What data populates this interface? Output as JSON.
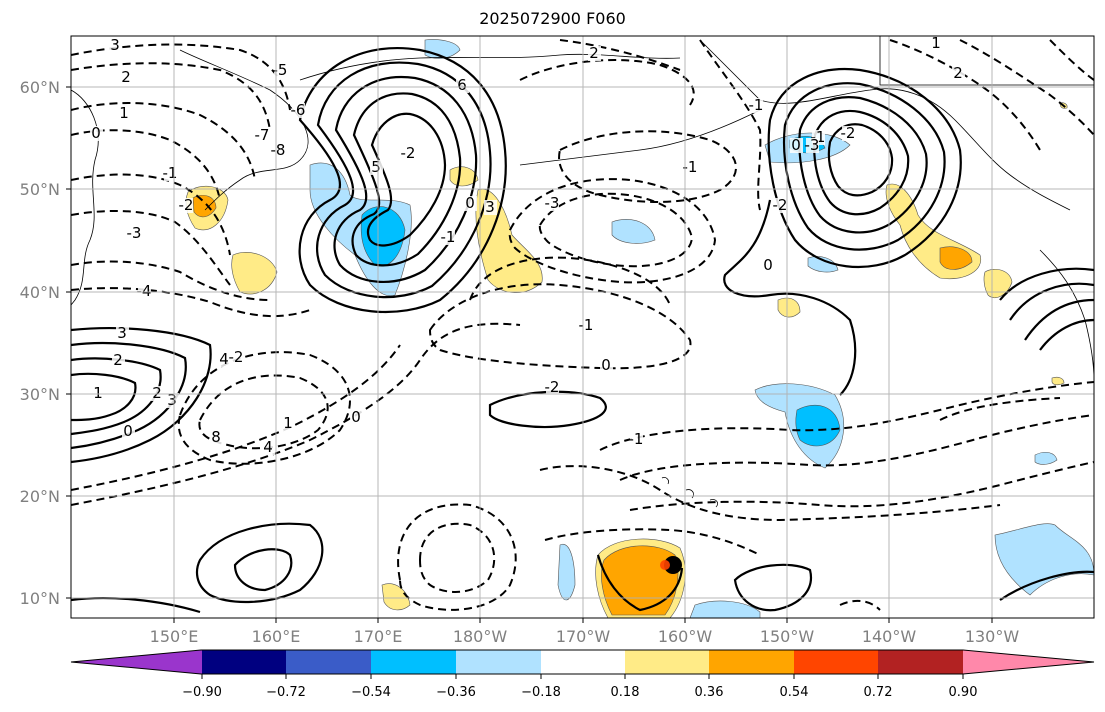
{
  "title": "2025072900 F060",
  "lat_ticks": [
    "60°N",
    "50°N",
    "40°N",
    "30°N",
    "20°N",
    "10°N"
  ],
  "lon_ticks": [
    "150°E",
    "160°E",
    "170°E",
    "180°W",
    "170°W",
    "160°W",
    "150°W",
    "140°W",
    "130°W"
  ],
  "colorbar": {
    "colors": [
      "#9a35cc",
      "#000080",
      "#3a5cc8",
      "#00bfff",
      "#b0e2ff",
      "#ffffff",
      "#ffeb87",
      "#ffa500",
      "#ff4500",
      "#b22222",
      "#ff88aa"
    ],
    "tick_labels": [
      "−0.90",
      "−0.72",
      "−0.54",
      "−0.36",
      "−0.18",
      "0.18",
      "0.36",
      "0.54",
      "0.72",
      "0.90"
    ]
  },
  "contour_labels": [
    "3",
    "2",
    "1",
    "0",
    "-1",
    "-2",
    "-3",
    "-4",
    "-5",
    "-6",
    "-7",
    "-8",
    "3",
    "2",
    "1",
    "0",
    "2",
    "3",
    "4",
    "8",
    "6",
    "5",
    "-2",
    "-1",
    "0",
    "-3",
    "2",
    "3",
    "4",
    "1",
    "0",
    "-2",
    "-1",
    "0",
    "-1",
    "-2",
    "-3",
    "-2",
    "-1",
    "0",
    "1",
    "2",
    "-1",
    "0",
    "-2",
    "-1"
  ]
}
